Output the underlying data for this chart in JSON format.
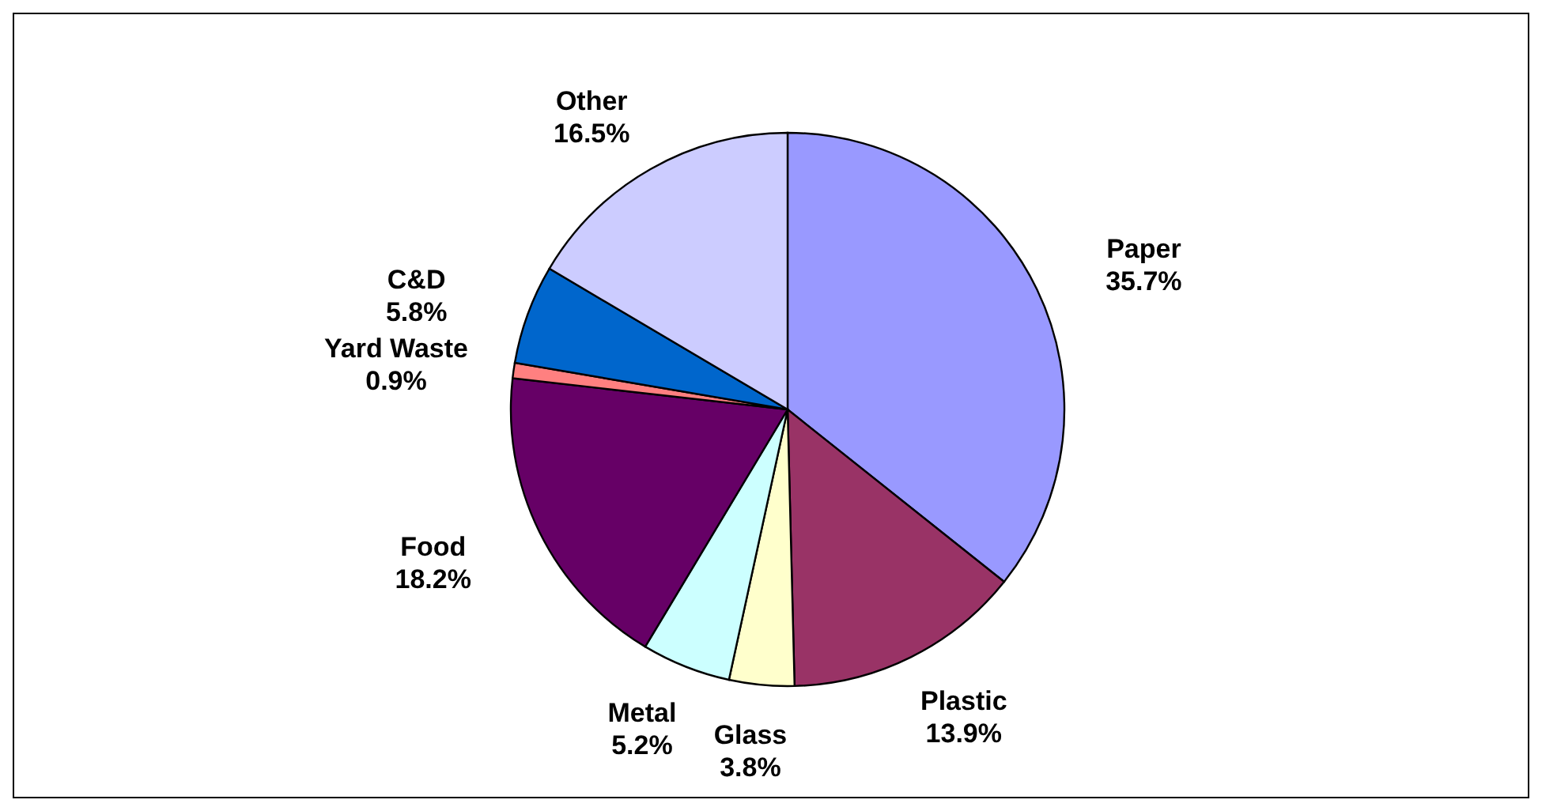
{
  "chart_data": {
    "type": "pie",
    "categories": [
      "Paper",
      "Plastic",
      "Glass",
      "Metal",
      "Food",
      "Yard Waste",
      "C&D",
      "Other"
    ],
    "values": [
      35.7,
      13.9,
      3.8,
      5.2,
      18.2,
      0.9,
      5.8,
      16.5
    ],
    "colors": [
      "#9999ff",
      "#993366",
      "#ffffcc",
      "#ccffff",
      "#660066",
      "#ff8080",
      "#0066cc",
      "#ccccff"
    ],
    "value_labels": [
      "35.7%",
      "13.9%",
      "3.8%",
      "5.2%",
      "18.2%",
      "0.9%",
      "5.8%",
      "16.5%"
    ]
  }
}
